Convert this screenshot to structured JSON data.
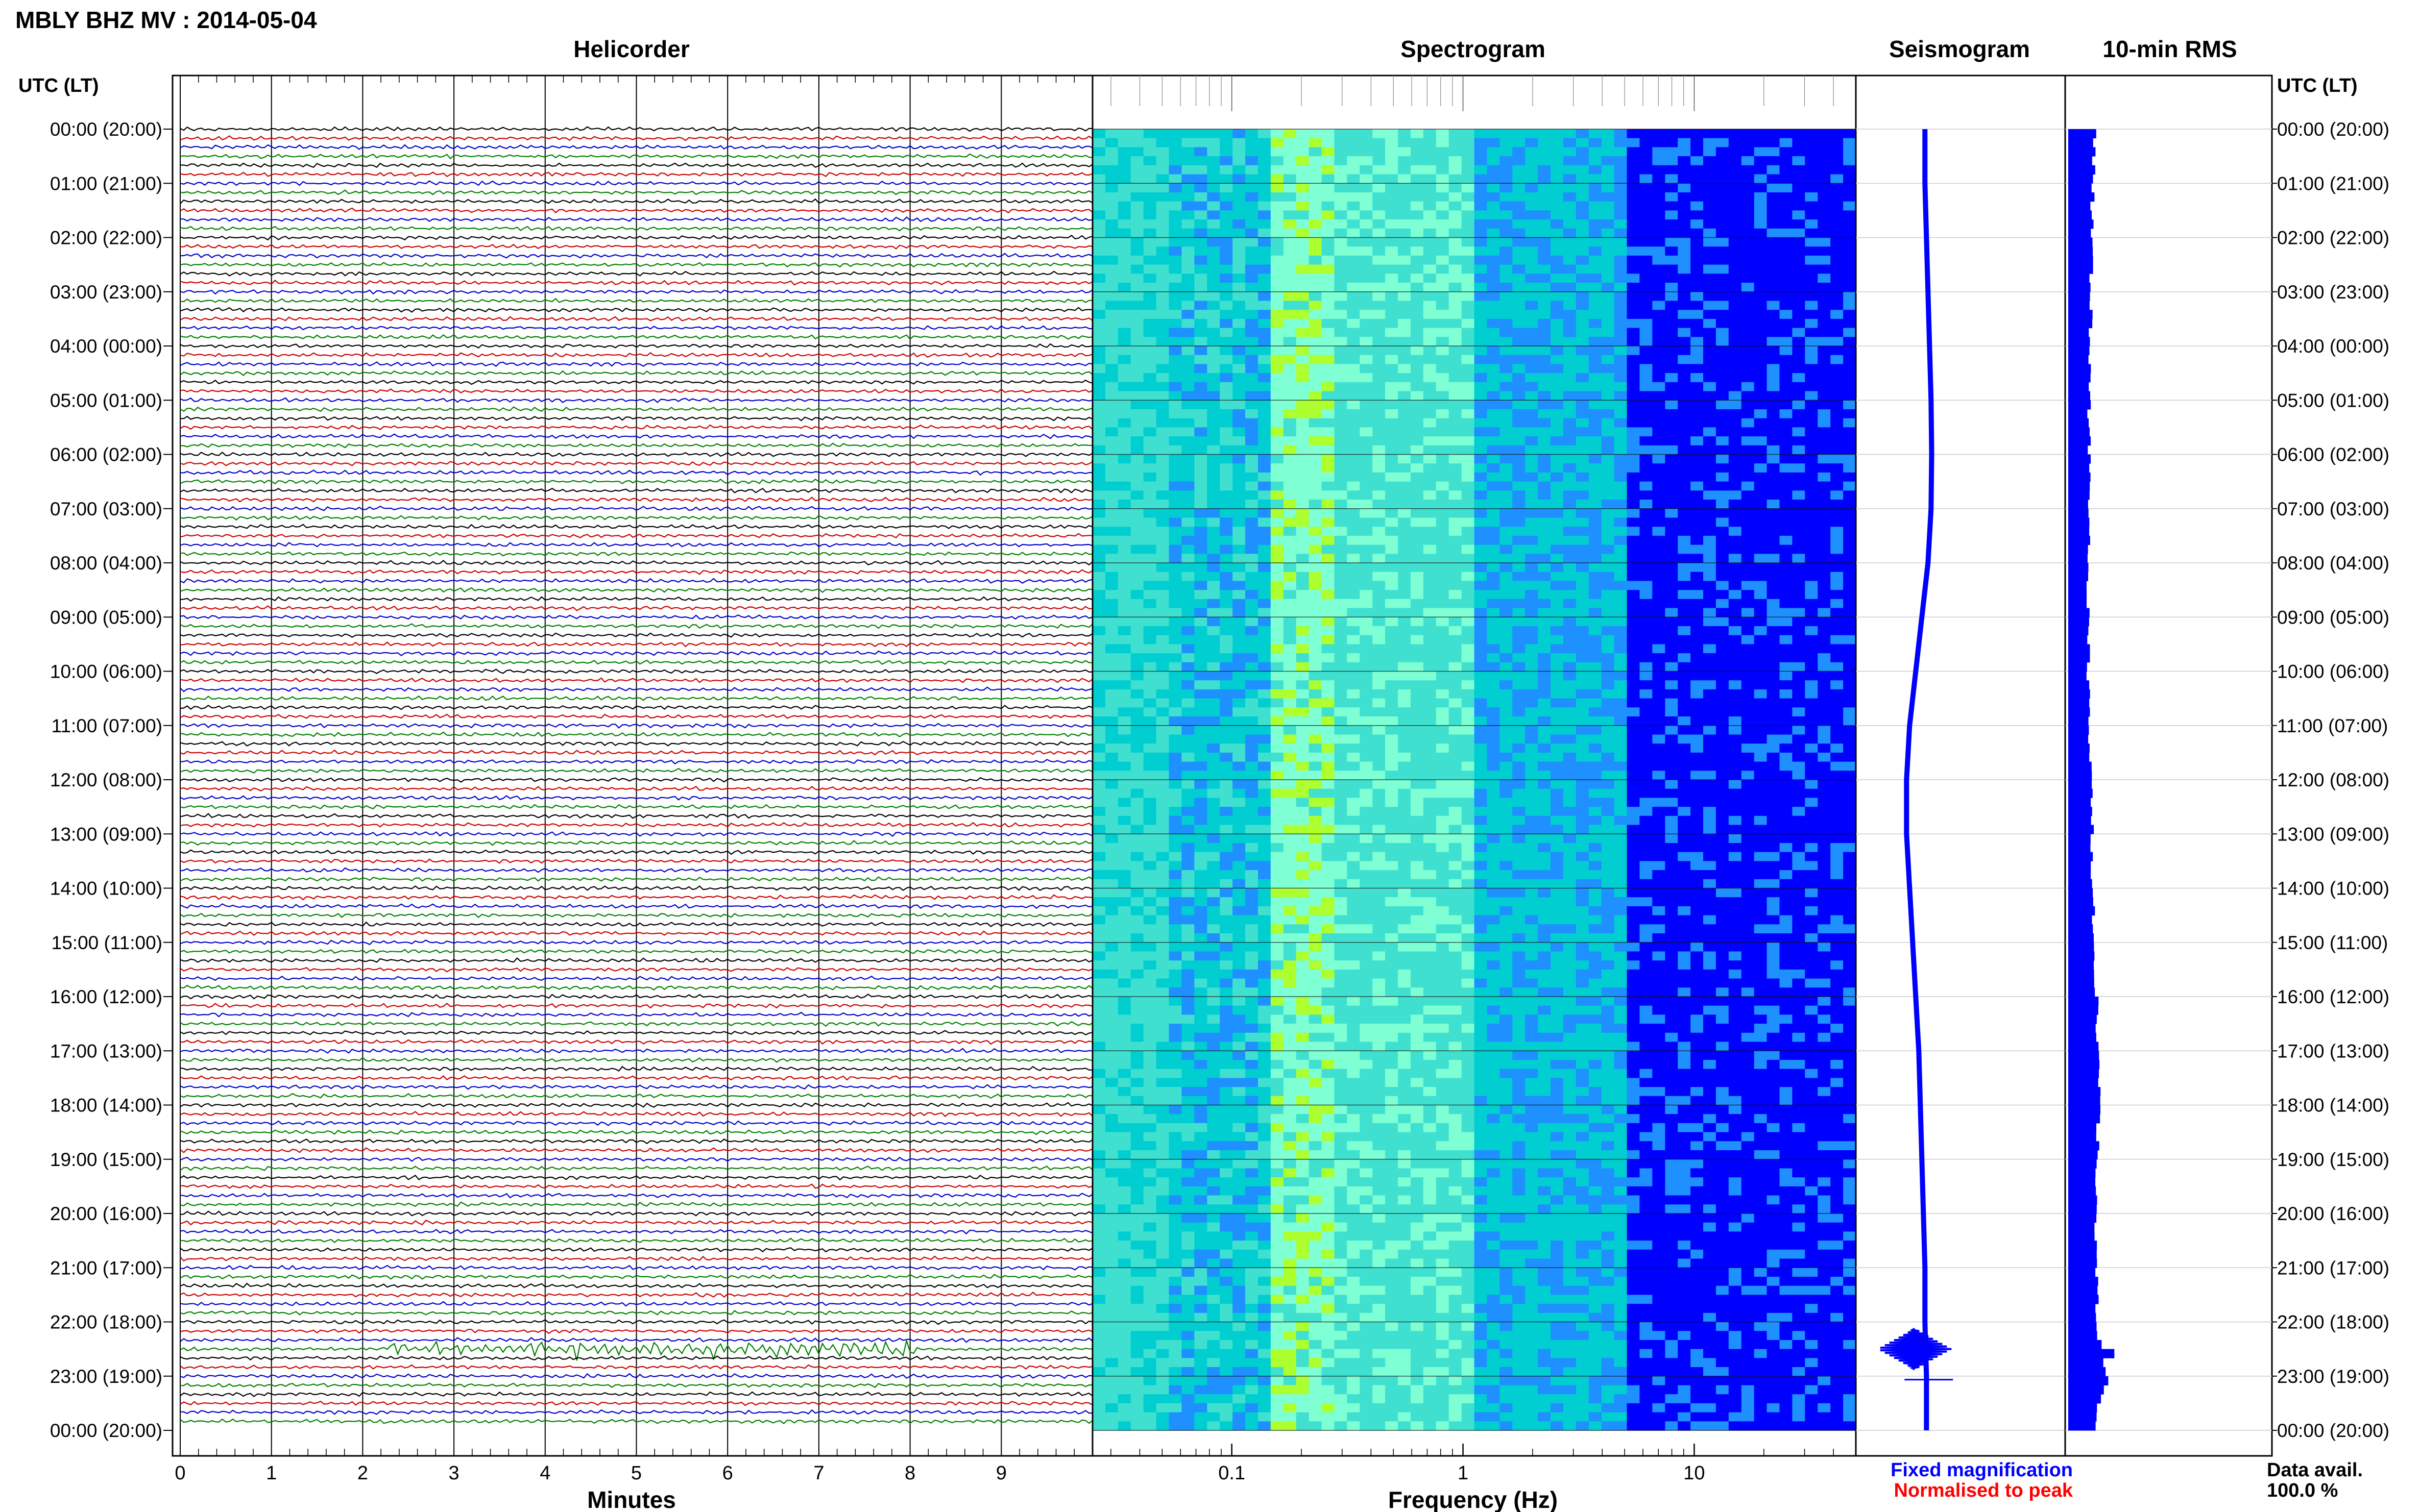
{
  "header": {
    "station_title": "MBLY BHZ MV : 2014-05-04",
    "utc_label_left": "UTC (LT)",
    "utc_label_right": "UTC (LT)"
  },
  "panels": {
    "helicorder": "Helicorder",
    "spectrogram": "Spectrogram",
    "seismogram": "Seismogram",
    "rms": "10-min RMS"
  },
  "legend": {
    "fixed": "Fixed magnification",
    "normalised": "Normalised to peak",
    "data_avail_label": "Data avail.",
    "data_avail_value": "100.0 %",
    "fixed_color": "#0000ff",
    "normalised_color": "#ff0000"
  },
  "chart_data": [
    {
      "type": "line",
      "panel": "helicorder",
      "xlabel": "Minutes",
      "x_ticks": [
        "0",
        "1",
        "2",
        "3",
        "4",
        "5",
        "6",
        "7",
        "8",
        "9"
      ],
      "xlim": [
        0,
        10
      ],
      "y_ticks": [
        "00:00 (20:00)",
        "01:00 (21:00)",
        "02:00 (22:00)",
        "03:00 (23:00)",
        "04:00 (00:00)",
        "05:00 (01:00)",
        "06:00 (02:00)",
        "07:00 (03:00)",
        "08:00 (04:00)",
        "09:00 (05:00)",
        "10:00 (06:00)",
        "11:00 (07:00)",
        "12:00 (08:00)",
        "13:00 (09:00)",
        "14:00 (10:00)",
        "15:00 (11:00)",
        "16:00 (12:00)",
        "17:00 (13:00)",
        "18:00 (14:00)",
        "19:00 (15:00)",
        "20:00 (16:00)",
        "21:00 (17:00)",
        "22:00 (18:00)",
        "23:00 (19:00)",
        "00:00 (20:00)"
      ],
      "trace_colors": [
        "#000000",
        "#cc0000",
        "#0000cc",
        "#008000"
      ],
      "traces_per_hour": 6,
      "events": [
        {
          "time": "22:30",
          "minute_start": 2.3,
          "minute_end": 8.1
        }
      ],
      "grid": true
    },
    {
      "type": "heatmap",
      "panel": "spectrogram",
      "xlabel": "Frequency (Hz)",
      "x_scale": "log",
      "x_ticks": [
        "0.1",
        "1",
        "10"
      ],
      "xlim": [
        0.025,
        50
      ],
      "colormap": [
        "#00008b",
        "#0000ff",
        "#1e90ff",
        "#00ced1",
        "#40e0d0",
        "#7fffd4",
        "#adff2f"
      ]
    },
    {
      "type": "line",
      "panel": "seismogram",
      "series": [
        {
          "values": [
            0.0,
            0.0,
            0.05,
            0.1,
            0.15,
            0.2,
            0.22,
            0.2,
            0.1,
            -0.1,
            -0.3,
            -0.5,
            -0.6,
            -0.6,
            -0.5,
            -0.4,
            -0.3,
            -0.2,
            -0.15,
            -0.1,
            -0.05,
            0.0,
            0.0,
            0.05,
            0.05
          ]
        }
      ],
      "spike_time": "22:30"
    },
    {
      "type": "bar",
      "panel": "rms",
      "values_relative": [
        0.65,
        0.6,
        0.55,
        0.55,
        0.52,
        0.5,
        0.5,
        0.48,
        0.48,
        0.47,
        0.47,
        0.5,
        0.55,
        0.58,
        0.6,
        0.65,
        0.7,
        0.75,
        0.75,
        0.7,
        0.68,
        0.7,
        0.72,
        0.95,
        0.55
      ],
      "peak_time": "22:30",
      "color": "#0000ff"
    }
  ]
}
